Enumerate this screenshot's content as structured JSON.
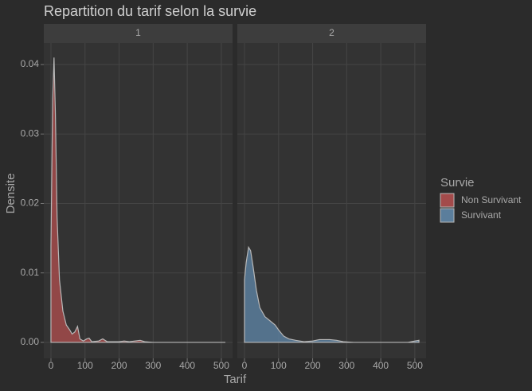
{
  "chart_data": {
    "type": "area",
    "title": "Repartition du tarif selon la survie",
    "xlabel": "Tarif",
    "ylabel": "Densite",
    "legend_title": "Survie",
    "xlim": [
      -21,
      533
    ],
    "ylim": [
      -0.0023,
      0.0431
    ],
    "xticks": [
      0,
      100,
      200,
      300,
      400,
      500
    ],
    "yticks": [
      {
        "value": 0,
        "label": "0.00"
      },
      0.01,
      0.02,
      0.03,
      0.04
    ],
    "grid": true,
    "panels": [
      {
        "label": "1",
        "series": [
          {
            "name": "Non Survivant",
            "color": "#a34b4b",
            "x": [
              0,
              5,
              9,
              13,
              18,
              25,
              35,
              45,
              55,
              62,
              70,
              78,
              85,
              95,
              105,
              112,
              120,
              140,
              152,
              165,
              200,
              215,
              230,
              262,
              275,
              300,
              400,
              512
            ],
            "values": [
              0.0138,
              0.035,
              0.041,
              0.033,
              0.018,
              0.009,
              0.0045,
              0.0025,
              0.0018,
              0.0012,
              0.0015,
              0.0023,
              0.0005,
              0.0002,
              0.0005,
              0.0006,
              0.0001,
              0.0002,
              0.0005,
              0.0001,
              0.0001,
              0.0002,
              0.0001,
              0.0003,
              0.0001,
              0,
              0,
              0
            ]
          }
        ]
      },
      {
        "label": "2",
        "series": [
          {
            "name": "Survivant",
            "color": "#5b7e9c",
            "x": [
              0,
              5,
              12,
              18,
              25,
              35,
              45,
              60,
              75,
              90,
              100,
              115,
              130,
              150,
              175,
              200,
              220,
              250,
              270,
              290,
              320,
              400,
              480,
              500,
              512
            ],
            "values": [
              0.009,
              0.0115,
              0.0137,
              0.0132,
              0.011,
              0.0075,
              0.005,
              0.0037,
              0.0031,
              0.0025,
              0.0018,
              0.0009,
              0.0005,
              0.0003,
              0.0001,
              0.0002,
              0.0004,
              0.0004,
              0.0003,
              0.0001,
              0,
              0,
              0,
              0.0002,
              0.0003
            ]
          }
        ]
      }
    ]
  }
}
